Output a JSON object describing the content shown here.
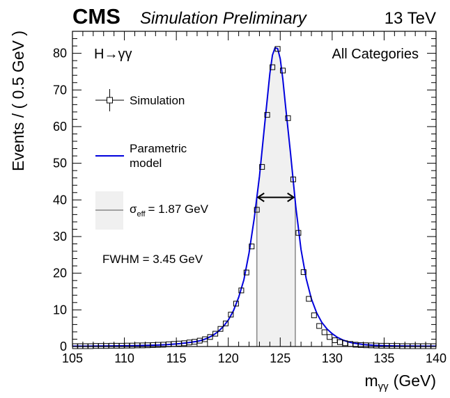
{
  "header": {
    "experiment": "CMS",
    "status": "Simulation Preliminary",
    "energy": "13 TeV"
  },
  "chart_data": {
    "type": "line",
    "xlabel": "m",
    "xlabel_sub": "γγ",
    "xlabel_unit": "(GeV)",
    "ylabel": "Events / ( 0.5 GeV )",
    "xlim": [
      105,
      140
    ],
    "ylim": [
      0,
      86
    ],
    "xticks": [
      105,
      110,
      115,
      120,
      125,
      130,
      135,
      140
    ],
    "yticks": [
      0,
      10,
      20,
      30,
      40,
      50,
      60,
      70,
      80
    ],
    "process_label": "H→γγ",
    "category_label": "All Categories",
    "legend": {
      "position": "top-left",
      "simulation": "Simulation",
      "model_line1": "Parametric",
      "model_line2": "model",
      "sigma_symbol": "σ",
      "sigma_sub": "eff",
      "sigma_value": "= 1.87 GeV",
      "fwhm": "FWHM = 3.45 GeV"
    },
    "sigma_eff_band": [
      122.75,
      126.45
    ],
    "fwhm_arrow": {
      "x1": 122.85,
      "x2": 126.3,
      "y": 40.7
    },
    "colors": {
      "model": "#0000dd",
      "band_fill": "#f0f0f0",
      "band_edge": "#888888",
      "points": "#000000"
    },
    "series": [
      {
        "name": "Simulation",
        "x": [
          105.25,
          105.75,
          106.25,
          106.75,
          107.25,
          107.75,
          108.25,
          108.75,
          109.25,
          109.75,
          110.25,
          110.75,
          111.25,
          111.75,
          112.25,
          112.75,
          113.25,
          113.75,
          114.25,
          114.75,
          115.25,
          115.75,
          116.25,
          116.75,
          117.25,
          117.75,
          118.25,
          118.75,
          119.25,
          119.75,
          120.25,
          120.75,
          121.25,
          121.75,
          122.25,
          122.75,
          123.25,
          123.75,
          124.25,
          124.75,
          125.25,
          125.75,
          126.25,
          126.75,
          127.25,
          127.75,
          128.25,
          128.75,
          129.25,
          129.75,
          130.25,
          130.75,
          131.25,
          131.75,
          132.25,
          132.75,
          133.25,
          133.75,
          134.25,
          134.75,
          135.25,
          135.75,
          136.25,
          136.75,
          137.25,
          137.75,
          138.25,
          138.75,
          139.25,
          139.75
        ],
        "y": [
          0.1,
          0.1,
          0.1,
          0.1,
          0.15,
          0.15,
          0.15,
          0.2,
          0.2,
          0.2,
          0.25,
          0.25,
          0.3,
          0.3,
          0.35,
          0.4,
          0.45,
          0.5,
          0.6,
          0.7,
          0.8,
          0.9,
          1.1,
          1.3,
          1.6,
          2.0,
          2.6,
          3.5,
          4.8,
          6.3,
          8.7,
          11.7,
          15.3,
          20.2,
          27.3,
          37.3,
          49.0,
          63.2,
          76.2,
          81.2,
          75.3,
          62.3,
          45.6,
          31.0,
          20.3,
          13.0,
          8.5,
          5.6,
          3.9,
          2.6,
          1.7,
          1.2,
          0.9,
          0.7,
          0.5,
          0.4,
          0.35,
          0.3,
          0.25,
          0.2,
          0.2,
          0.15,
          0.15,
          0.1,
          0.1,
          0.1,
          0.1,
          0.1,
          0.1,
          0.1
        ]
      },
      {
        "name": "Parametric model",
        "x": [
          105,
          106,
          107,
          108,
          109,
          110,
          111,
          112,
          113,
          114,
          115,
          116,
          117,
          117.5,
          118,
          118.5,
          119,
          119.5,
          120,
          120.5,
          121,
          121.5,
          122,
          122.5,
          123,
          123.5,
          124,
          124.25,
          124.5,
          124.75,
          125,
          125.25,
          125.5,
          126,
          126.5,
          127,
          127.5,
          128,
          128.5,
          129,
          129.5,
          130,
          130.5,
          131,
          131.5,
          132,
          133,
          134,
          135,
          136,
          137,
          138,
          139,
          140
        ],
        "y": [
          0.1,
          0.1,
          0.12,
          0.14,
          0.17,
          0.2,
          0.24,
          0.3,
          0.38,
          0.5,
          0.7,
          1.0,
          1.4,
          1.75,
          2.3,
          3.0,
          4.0,
          5.4,
          7.2,
          9.8,
          13.4,
          18.2,
          25.5,
          35.0,
          46.5,
          60.5,
          74.5,
          79.5,
          81.5,
          81.3,
          78.5,
          73.0,
          66.0,
          52.5,
          38.0,
          26.5,
          18.5,
          13.0,
          9.2,
          6.6,
          4.8,
          3.5,
          2.5,
          1.8,
          1.3,
          0.95,
          0.55,
          0.35,
          0.25,
          0.18,
          0.14,
          0.12,
          0.1,
          0.1
        ]
      }
    ]
  }
}
